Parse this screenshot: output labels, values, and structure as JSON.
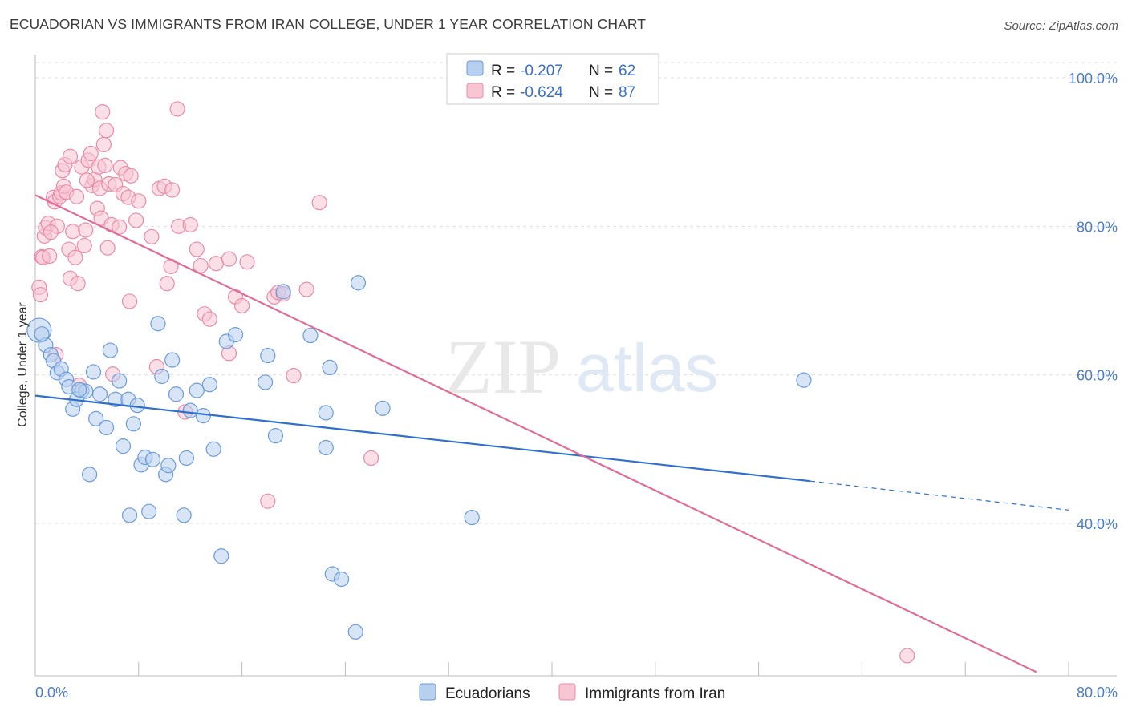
{
  "title": "ECUADORIAN VS IMMIGRANTS FROM IRAN COLLEGE, UNDER 1 YEAR CORRELATION CHART",
  "source": "Source: ZipAtlas.com",
  "watermark": {
    "zip": "ZIP",
    "atlas": "atlas"
  },
  "colors": {
    "blue_fill": "#b7d0f0",
    "blue_stroke": "#6c9bd8",
    "blue_line": "#2f6fcd",
    "pink_fill": "#f7c5d4",
    "pink_stroke": "#e98ba8",
    "pink_line": "#e06d98",
    "tick": "#4a7cc9",
    "grid": "#dddddd"
  },
  "legend": {
    "rows": [
      {
        "r_label": "R = ",
        "r_value": "-0.207",
        "n_label": "N = ",
        "n_value": "62"
      },
      {
        "r_label": "R = ",
        "r_value": "-0.624",
        "n_label": "N = ",
        "n_value": "87"
      }
    ]
  },
  "chart_data": {
    "type": "scatter",
    "title": "ECUADORIAN VS IMMIGRANTS FROM IRAN COLLEGE, UNDER 1 YEAR CORRELATION CHART",
    "ylabel": "College, Under 1 year",
    "xlabel": "",
    "xlim": [
      0,
      80
    ],
    "ylim": [
      20,
      104
    ],
    "x_tick_labels": [
      "0.0%",
      "80.0%"
    ],
    "y_ticks": [
      40,
      60,
      80,
      100
    ],
    "y_tick_labels": [
      "40.0%",
      "60.0%",
      "80.0%",
      "100.0%"
    ],
    "grid": true,
    "legend_position": "top-center",
    "series": [
      {
        "name": "Ecuadorians",
        "color": "blue",
        "stats": {
          "R": -0.207,
          "N": 62
        },
        "trend": {
          "x0": 0,
          "y0": 57.2,
          "x1": 60,
          "y1": 45.7,
          "dash_to_x": 80,
          "dash_to_y": 41.8
        },
        "points": [
          [
            0.3,
            66.0
          ],
          [
            0.8,
            64.0
          ],
          [
            1.2,
            62.7
          ],
          [
            1.4,
            61.9
          ],
          [
            1.7,
            60.3
          ],
          [
            2.0,
            60.8
          ],
          [
            2.4,
            59.4
          ],
          [
            2.6,
            58.4
          ],
          [
            2.9,
            55.4
          ],
          [
            3.2,
            56.7
          ],
          [
            3.6,
            57.9
          ],
          [
            3.9,
            57.8
          ],
          [
            4.2,
            46.6
          ],
          [
            4.5,
            60.4
          ],
          [
            4.7,
            54.1
          ],
          [
            5.0,
            57.4
          ],
          [
            5.5,
            52.9
          ],
          [
            5.8,
            63.3
          ],
          [
            6.2,
            56.7
          ],
          [
            6.5,
            59.2
          ],
          [
            6.8,
            50.4
          ],
          [
            7.2,
            56.7
          ],
          [
            7.3,
            41.1
          ],
          [
            7.6,
            53.4
          ],
          [
            7.9,
            55.9
          ],
          [
            8.2,
            47.9
          ],
          [
            8.5,
            48.9
          ],
          [
            8.8,
            41.6
          ],
          [
            9.1,
            48.6
          ],
          [
            9.5,
            66.9
          ],
          [
            9.8,
            59.8
          ],
          [
            10.1,
            46.6
          ],
          [
            10.3,
            47.8
          ],
          [
            10.6,
            62.0
          ],
          [
            10.9,
            57.4
          ],
          [
            11.5,
            41.1
          ],
          [
            11.7,
            48.8
          ],
          [
            12.0,
            55.2
          ],
          [
            12.5,
            57.9
          ],
          [
            13.0,
            54.5
          ],
          [
            13.5,
            58.7
          ],
          [
            13.8,
            50.0
          ],
          [
            14.8,
            64.5
          ],
          [
            14.4,
            35.6
          ],
          [
            15.5,
            65.4
          ],
          [
            17.8,
            59.0
          ],
          [
            18.0,
            62.6
          ],
          [
            18.6,
            51.8
          ],
          [
            19.2,
            71.2
          ],
          [
            21.3,
            65.3
          ],
          [
            22.5,
            50.2
          ],
          [
            22.5,
            54.9
          ],
          [
            22.8,
            61.0
          ],
          [
            23.0,
            33.2
          ],
          [
            23.7,
            32.5
          ],
          [
            24.8,
            25.4
          ],
          [
            25.0,
            72.4
          ],
          [
            26.9,
            55.5
          ],
          [
            33.8,
            40.8
          ],
          [
            59.5,
            59.3
          ],
          [
            0.5,
            65.5
          ],
          [
            3.4,
            58.0
          ]
        ]
      },
      {
        "name": "Immigrants from Iran",
        "color": "pink",
        "stats": {
          "R": -0.624,
          "N": 87
        },
        "trend": {
          "x0": 0,
          "y0": 84.2,
          "x1": 77.5,
          "y1": 20.0
        },
        "points": [
          [
            0.3,
            71.8
          ],
          [
            0.4,
            70.8
          ],
          [
            0.5,
            75.9
          ],
          [
            0.6,
            75.8
          ],
          [
            0.7,
            78.7
          ],
          [
            0.8,
            79.8
          ],
          [
            1.0,
            80.4
          ],
          [
            1.1,
            76.0
          ],
          [
            1.4,
            83.9
          ],
          [
            1.5,
            83.3
          ],
          [
            1.6,
            62.7
          ],
          [
            1.7,
            80.0
          ],
          [
            1.9,
            84.0
          ],
          [
            2.0,
            84.5
          ],
          [
            2.1,
            87.5
          ],
          [
            2.2,
            85.4
          ],
          [
            2.3,
            88.3
          ],
          [
            2.4,
            84.6
          ],
          [
            2.6,
            76.9
          ],
          [
            2.7,
            73.0
          ],
          [
            2.7,
            89.4
          ],
          [
            2.9,
            79.3
          ],
          [
            3.1,
            75.8
          ],
          [
            3.2,
            84.0
          ],
          [
            3.3,
            72.3
          ],
          [
            3.4,
            58.6
          ],
          [
            3.6,
            88.0
          ],
          [
            3.8,
            77.4
          ],
          [
            3.9,
            79.5
          ],
          [
            4.1,
            88.9
          ],
          [
            4.3,
            89.8
          ],
          [
            4.4,
            85.5
          ],
          [
            4.6,
            86.3
          ],
          [
            4.8,
            82.4
          ],
          [
            4.9,
            88.0
          ],
          [
            5.0,
            85.1
          ],
          [
            5.1,
            81.1
          ],
          [
            5.2,
            95.4
          ],
          [
            5.3,
            91.0
          ],
          [
            5.4,
            88.2
          ],
          [
            5.5,
            92.9
          ],
          [
            5.6,
            77.1
          ],
          [
            5.7,
            85.7
          ],
          [
            5.9,
            80.2
          ],
          [
            6.0,
            60.1
          ],
          [
            6.2,
            85.6
          ],
          [
            6.5,
            79.9
          ],
          [
            6.6,
            87.9
          ],
          [
            6.8,
            84.4
          ],
          [
            7.0,
            87.1
          ],
          [
            7.2,
            83.9
          ],
          [
            7.3,
            69.9
          ],
          [
            7.4,
            86.8
          ],
          [
            7.8,
            80.8
          ],
          [
            8.0,
            83.4
          ],
          [
            9.4,
            61.1
          ],
          [
            9.6,
            85.1
          ],
          [
            10.0,
            85.4
          ],
          [
            10.2,
            72.3
          ],
          [
            10.5,
            74.6
          ],
          [
            10.6,
            84.9
          ],
          [
            11.0,
            95.8
          ],
          [
            11.1,
            80.0
          ],
          [
            11.6,
            55.0
          ],
          [
            12.0,
            80.2
          ],
          [
            12.5,
            76.9
          ],
          [
            12.8,
            74.7
          ],
          [
            13.1,
            68.2
          ],
          [
            13.5,
            67.5
          ],
          [
            14.0,
            75.0
          ],
          [
            15.0,
            75.6
          ],
          [
            15.5,
            70.5
          ],
          [
            16.0,
            69.3
          ],
          [
            16.4,
            75.2
          ],
          [
            18.0,
            43.0
          ],
          [
            18.5,
            70.5
          ],
          [
            18.8,
            71.1
          ],
          [
            19.2,
            70.9
          ],
          [
            20.0,
            59.9
          ],
          [
            21.0,
            71.5
          ],
          [
            22.0,
            83.2
          ],
          [
            26.0,
            48.8
          ],
          [
            67.5,
            22.2
          ],
          [
            15.0,
            62.9
          ],
          [
            9.0,
            78.6
          ],
          [
            4.0,
            86.2
          ],
          [
            1.2,
            79.2
          ]
        ]
      }
    ]
  },
  "bottom_legend": [
    {
      "label": "Ecuadorians",
      "color": "blue"
    },
    {
      "label": "Immigrants from Iran",
      "color": "pink"
    }
  ]
}
